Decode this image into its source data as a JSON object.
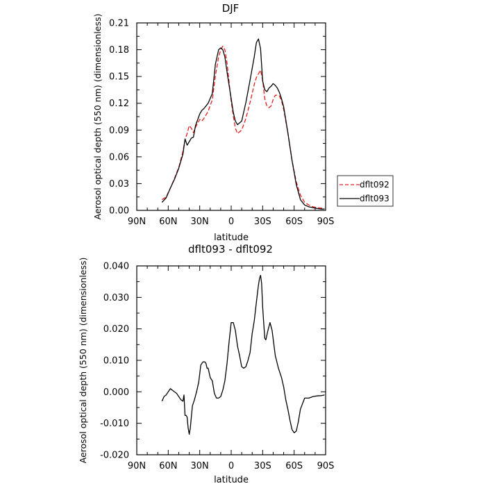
{
  "chart_data": [
    {
      "type": "line",
      "title": "DJF",
      "xlabel": "latitude",
      "ylabel": "Aerosol optical depth (550 nm) (dimensionless)",
      "xlim": [
        90,
        -90
      ],
      "ylim": [
        0,
        0.21
      ],
      "xticks": [
        90,
        60,
        30,
        0,
        -30,
        -60,
        -90
      ],
      "xtick_labels": [
        "90N",
        "60N",
        "30N",
        "0",
        "30S",
        "60S",
        "90S"
      ],
      "yticks": [
        0,
        0.03,
        0.06,
        0.09,
        0.12,
        0.15,
        0.18,
        0.21
      ],
      "ytick_labels": [
        "0.00",
        "0.03",
        "0.06",
        "0.09",
        "0.12",
        "0.15",
        "0.18",
        "0.21"
      ],
      "legend": {
        "position": "right",
        "entries": [
          "dflt092",
          "dflt093"
        ]
      },
      "series": [
        {
          "name": "dflt092",
          "color": "#e41a1c",
          "dash": "dashed",
          "x": [
            66,
            62,
            58,
            54,
            50,
            46,
            44,
            42,
            40,
            38,
            36,
            34,
            30,
            28,
            26,
            22,
            18,
            15,
            12,
            10,
            8,
            6,
            4,
            0,
            -2,
            -4,
            -6,
            -10,
            -14,
            -18,
            -22,
            -24,
            -26,
            -28,
            -30,
            -32,
            -34,
            -36,
            -38,
            -40,
            -42,
            -44,
            -46,
            -48,
            -50,
            -54,
            -58,
            -62,
            -66,
            -70,
            -74,
            -78,
            -82,
            -86,
            -89
          ],
          "values": [
            0.012,
            0.015,
            0.025,
            0.036,
            0.048,
            0.066,
            0.079,
            0.086,
            0.095,
            0.092,
            0.087,
            0.093,
            0.102,
            0.1,
            0.103,
            0.111,
            0.124,
            0.151,
            0.172,
            0.18,
            0.184,
            0.18,
            0.165,
            0.122,
            0.106,
            0.092,
            0.086,
            0.09,
            0.103,
            0.121,
            0.141,
            0.149,
            0.153,
            0.157,
            0.146,
            0.125,
            0.117,
            0.115,
            0.117,
            0.124,
            0.129,
            0.129,
            0.128,
            0.123,
            0.113,
            0.087,
            0.056,
            0.032,
            0.017,
            0.009,
            0.006,
            0.004,
            0.003,
            0.0025,
            0.002
          ]
        },
        {
          "name": "dflt093",
          "color": "#000000",
          "dash": "solid",
          "x": [
            66,
            62,
            58,
            54,
            50,
            46,
            44,
            42,
            40,
            38,
            36,
            34,
            30,
            28,
            26,
            22,
            18,
            15,
            12,
            10,
            8,
            6,
            4,
            0,
            -2,
            -4,
            -6,
            -10,
            -14,
            -18,
            -22,
            -24,
            -26,
            -28,
            -30,
            -32,
            -34,
            -36,
            -38,
            -40,
            -42,
            -44,
            -46,
            -48,
            -50,
            -54,
            -58,
            -62,
            -66,
            -70,
            -74,
            -78,
            -82,
            -86,
            -89
          ],
          "values": [
            0.009,
            0.014,
            0.025,
            0.035,
            0.047,
            0.063,
            0.08,
            0.073,
            0.077,
            0.081,
            0.082,
            0.095,
            0.108,
            0.112,
            0.114,
            0.12,
            0.131,
            0.164,
            0.18,
            0.182,
            0.18,
            0.172,
            0.155,
            0.125,
            0.11,
            0.1,
            0.096,
            0.1,
            0.121,
            0.146,
            0.172,
            0.188,
            0.192,
            0.181,
            0.145,
            0.135,
            0.133,
            0.137,
            0.139,
            0.142,
            0.14,
            0.137,
            0.132,
            0.125,
            0.116,
            0.087,
            0.056,
            0.029,
            0.012,
            0.006,
            0.004,
            0.003,
            0.002,
            0.0015,
            0.0015
          ]
        }
      ]
    },
    {
      "type": "line",
      "title": "dflt093 - dflt092",
      "xlabel": "latitude",
      "ylabel": "Aerosol optical depth (550 nm) (dimensionless)",
      "xlim": [
        90,
        -90
      ],
      "ylim": [
        -0.02,
        0.04
      ],
      "xticks": [
        90,
        60,
        30,
        0,
        -30,
        -60,
        -90
      ],
      "xtick_labels": [
        "90N",
        "60N",
        "30N",
        "0",
        "30S",
        "60S",
        "90S"
      ],
      "yticks": [
        -0.02,
        -0.01,
        0,
        0.01,
        0.02,
        0.03,
        0.04
      ],
      "ytick_labels": [
        "-0.020",
        "-0.010",
        "0.000",
        "0.010",
        "0.020",
        "0.030",
        "0.040"
      ],
      "series": [
        {
          "color": "#000000",
          "dash": "solid",
          "x": [
            66,
            64,
            62,
            60,
            58,
            56,
            52,
            48,
            46,
            45,
            44,
            43,
            42,
            41,
            40,
            39,
            37,
            35,
            33,
            31,
            29,
            27,
            25,
            24,
            23,
            22,
            20,
            18,
            16,
            14,
            12,
            10,
            8,
            6,
            4,
            2,
            0,
            -2,
            -4,
            -6,
            -8,
            -10,
            -12,
            -14,
            -16,
            -18,
            -20,
            -22,
            -24,
            -26,
            -27,
            -28,
            -29,
            -30,
            -31,
            -32,
            -33,
            -35,
            -37,
            -39,
            -42,
            -45,
            -48,
            -50,
            -52,
            -54,
            -56,
            -58,
            -60,
            -62,
            -64,
            -66,
            -70,
            -74,
            -78,
            -82,
            -86,
            -89
          ],
          "values": [
            -0.003,
            -0.0015,
            -0.001,
            0.0,
            0.001,
            0.0005,
            -0.0005,
            -0.0025,
            -0.003,
            -0.001,
            -0.0075,
            -0.0075,
            -0.008,
            -0.0115,
            -0.0135,
            -0.0115,
            -0.0045,
            -0.0025,
            0.0,
            0.003,
            0.0085,
            0.0095,
            0.0095,
            0.009,
            0.0075,
            0.0075,
            0.0045,
            0.0035,
            -0.0005,
            -0.002,
            -0.002,
            -0.0015,
            0.0005,
            0.0035,
            0.009,
            0.016,
            0.022,
            0.022,
            0.0195,
            0.0145,
            0.0115,
            0.008,
            0.0075,
            0.008,
            0.01,
            0.0125,
            0.0185,
            0.0225,
            0.0285,
            0.034,
            0.036,
            0.037,
            0.0345,
            0.027,
            0.022,
            0.017,
            0.0165,
            0.0195,
            0.022,
            0.0195,
            0.0115,
            0.0075,
            0.0045,
            0.0015,
            -0.0025,
            -0.0055,
            -0.009,
            -0.012,
            -0.013,
            -0.0125,
            -0.0095,
            -0.0055,
            -0.002,
            -0.002,
            -0.0015,
            -0.0013,
            -0.0012,
            -0.001
          ]
        }
      ]
    }
  ]
}
